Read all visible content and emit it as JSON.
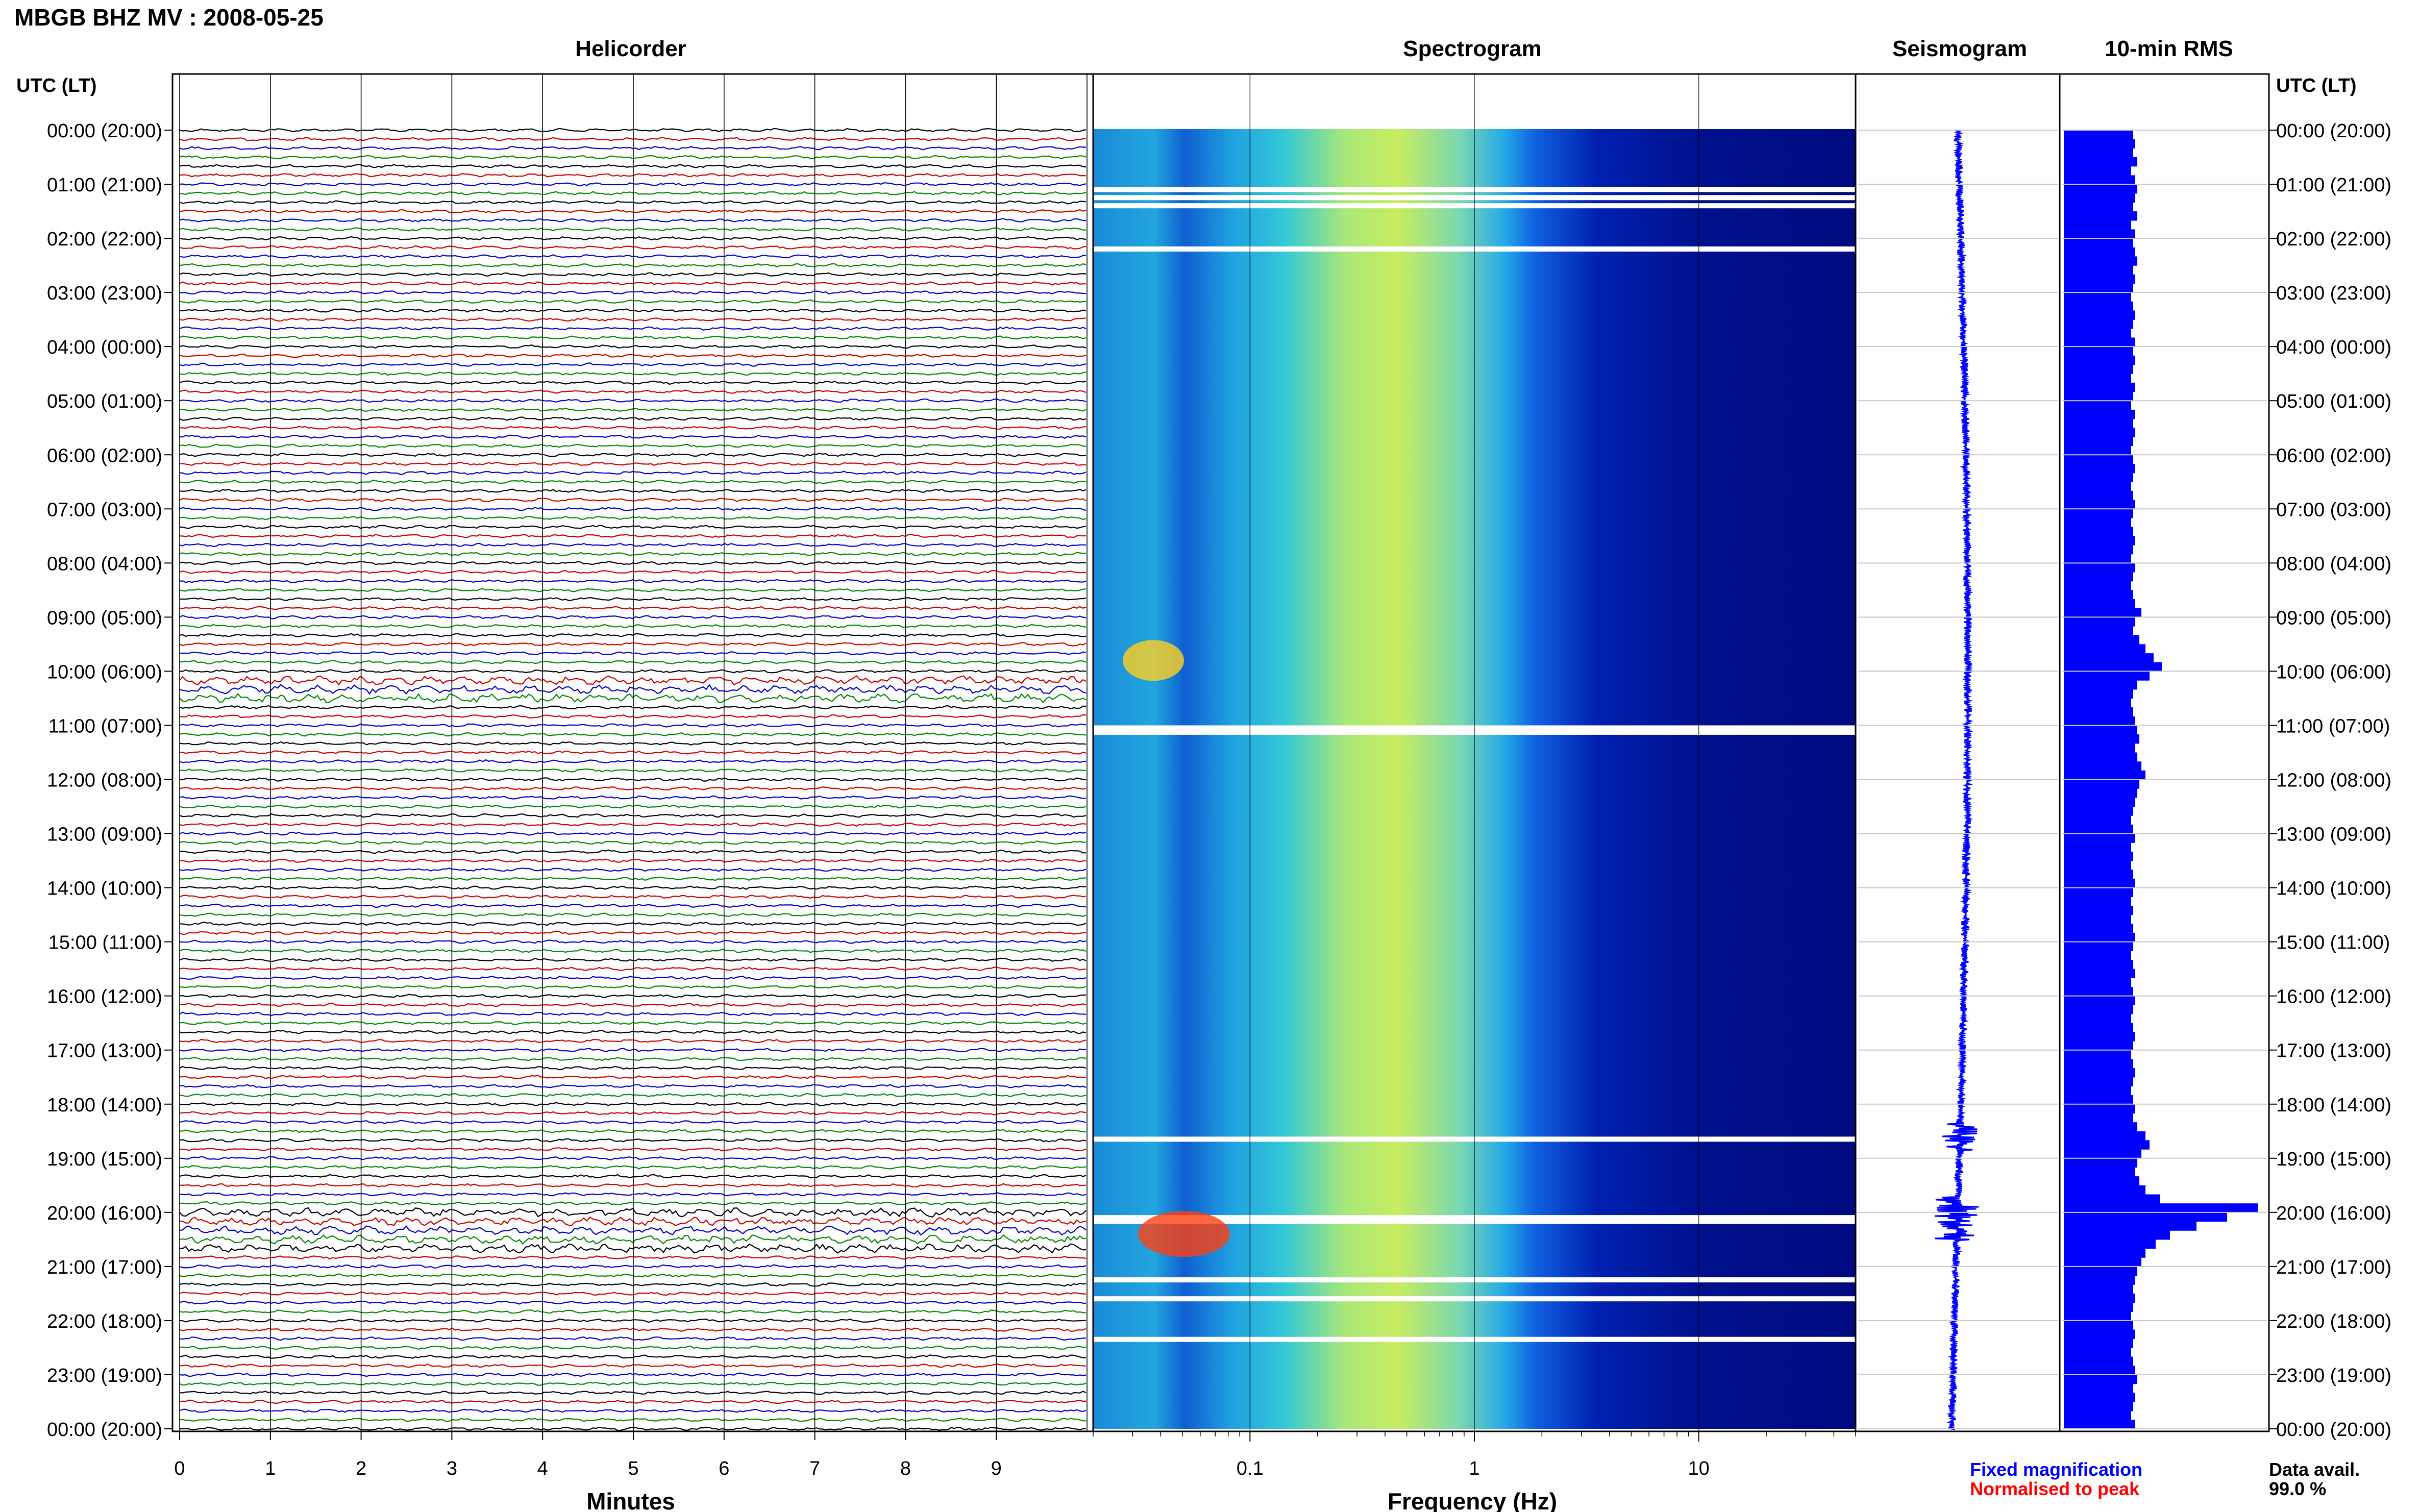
{
  "header": {
    "station_title": "MBGB BHZ MV : 2008-05-25",
    "utc_label_left": "UTC (LT)",
    "utc_label_right": "UTC (LT)"
  },
  "panels": {
    "helicorder": "Helicorder",
    "spectrogram": "Spectrogram",
    "seismogram": "Seismogram",
    "rms": "10-min RMS"
  },
  "axes": {
    "helicorder_xlabel": "Minutes",
    "spectrogram_xlabel": "Frequency (Hz)",
    "minute_ticks": [
      "0",
      "1",
      "2",
      "3",
      "4",
      "5",
      "6",
      "7",
      "8",
      "9"
    ],
    "freq_ticks": [
      "0.1",
      "1",
      "10"
    ]
  },
  "legend": {
    "fixed": "Fixed magnification",
    "normalised": "Normalised to peak",
    "fixed_color": "#0000ff",
    "normalised_color": "#ff0000"
  },
  "data_avail": {
    "label": "Data avail.",
    "value": "99.0 %"
  },
  "chart_data": {
    "type": "heatmap",
    "title": "MBGB BHZ MV : 2008-05-25",
    "time_labels": [
      "00:00 (20:00)",
      "01:00 (21:00)",
      "02:00 (22:00)",
      "03:00 (23:00)",
      "04:00 (00:00)",
      "05:00 (01:00)",
      "06:00 (02:00)",
      "07:00 (03:00)",
      "08:00 (04:00)",
      "09:00 (05:00)",
      "10:00 (06:00)",
      "11:00 (07:00)",
      "12:00 (08:00)",
      "13:00 (09:00)",
      "14:00 (10:00)",
      "15:00 (11:00)",
      "16:00 (12:00)",
      "17:00 (13:00)",
      "18:00 (14:00)",
      "19:00 (15:00)",
      "20:00 (16:00)",
      "21:00 (17:00)",
      "22:00 (18:00)",
      "23:00 (19:00)",
      "00:00 (20:00)"
    ],
    "helicorder": {
      "xlabel": "Minutes",
      "xlim": [
        0,
        10
      ],
      "trace_colors": [
        "#000000",
        "#cc0000",
        "#0000cc",
        "#008800"
      ],
      "lines_per_hour": 6
    },
    "spectrogram": {
      "xlabel": "Frequency (Hz)",
      "xscale": "log",
      "xlim": [
        0.02,
        50
      ],
      "colormap": "jet"
    },
    "rms_10min_relative": [
      0.34,
      0.35,
      0.34,
      0.36,
      0.33,
      0.35,
      0.36,
      0.35,
      0.34,
      0.36,
      0.33,
      0.35,
      0.34,
      0.35,
      0.36,
      0.34,
      0.35,
      0.34,
      0.33,
      0.34,
      0.35,
      0.34,
      0.33,
      0.35,
      0.34,
      0.35,
      0.34,
      0.33,
      0.35,
      0.34,
      0.33,
      0.35,
      0.34,
      0.35,
      0.34,
      0.33,
      0.34,
      0.35,
      0.34,
      0.33,
      0.34,
      0.35,
      0.34,
      0.33,
      0.34,
      0.35,
      0.34,
      0.33,
      0.35,
      0.34,
      0.33,
      0.34,
      0.35,
      0.38,
      0.35,
      0.34,
      0.37,
      0.4,
      0.44,
      0.48,
      0.42,
      0.36,
      0.34,
      0.33,
      0.34,
      0.35,
      0.36,
      0.37,
      0.35,
      0.36,
      0.38,
      0.4,
      0.37,
      0.36,
      0.35,
      0.34,
      0.33,
      0.34,
      0.35,
      0.33,
      0.34,
      0.33,
      0.34,
      0.35,
      0.34,
      0.33,
      0.34,
      0.33,
      0.34,
      0.35,
      0.34,
      0.33,
      0.34,
      0.35,
      0.33,
      0.34,
      0.35,
      0.34,
      0.33,
      0.34,
      0.35,
      0.34,
      0.33,
      0.34,
      0.35,
      0.34,
      0.33,
      0.34,
      0.35,
      0.34,
      0.36,
      0.4,
      0.42,
      0.38,
      0.36,
      0.35,
      0.37,
      0.4,
      0.47,
      0.95,
      0.8,
      0.65,
      0.52,
      0.45,
      0.4,
      0.38,
      0.36,
      0.35,
      0.34,
      0.35,
      0.34,
      0.33,
      0.34,
      0.35,
      0.34,
      0.33,
      0.34,
      0.35,
      0.36,
      0.34,
      0.35,
      0.34,
      0.33,
      0.35
    ]
  }
}
